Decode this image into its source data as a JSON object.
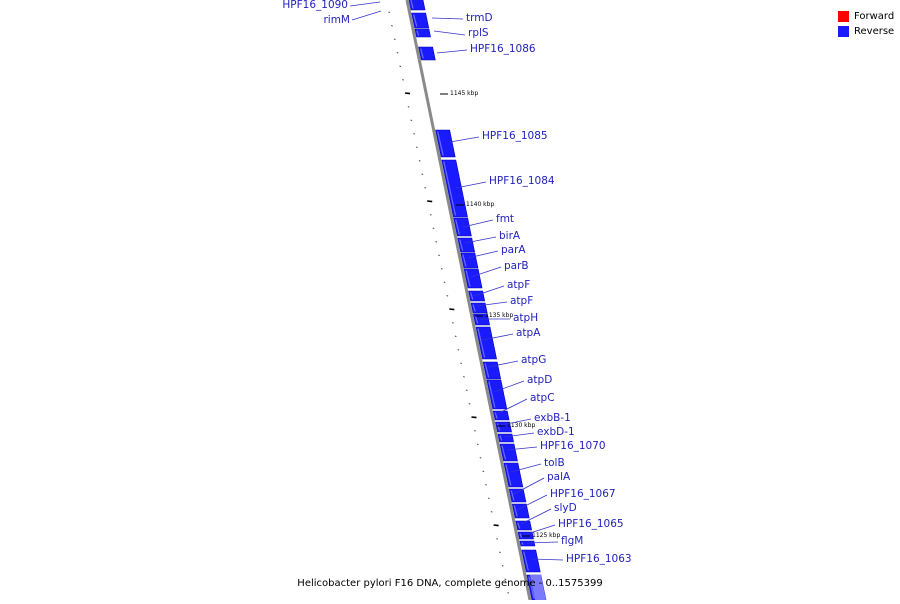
{
  "legend": [
    {
      "label": "Forward",
      "color": "#ff0000"
    },
    {
      "label": "Reverse",
      "color": "#1a1aff"
    }
  ],
  "caption": "Helicobacter pylori F16 DNA, complete genome - 0..1575399",
  "colors": {
    "gene": "#1a1aff",
    "gene_dark": "#0000b0",
    "axis": "#8a8a8a",
    "label": "#2222bb"
  },
  "scale_labels": [
    "1145 kbp",
    "1140 kbp",
    "1135 kbp",
    "1130 kbp",
    "1125 kbp"
  ],
  "genes": [
    {
      "name": "HPF16_1090"
    },
    {
      "name": "rimM"
    },
    {
      "name": "trmD"
    },
    {
      "name": "rplS"
    },
    {
      "name": "HPF16_1086"
    },
    {
      "name": "HPF16_1085"
    },
    {
      "name": "HPF16_1084"
    },
    {
      "name": "fmt"
    },
    {
      "name": "birA"
    },
    {
      "name": "parA"
    },
    {
      "name": "parB"
    },
    {
      "name": "atpF"
    },
    {
      "name": "atpF"
    },
    {
      "name": "atpH"
    },
    {
      "name": "atpA"
    },
    {
      "name": "atpG"
    },
    {
      "name": "atpD"
    },
    {
      "name": "atpC"
    },
    {
      "name": "exbB-1"
    },
    {
      "name": "exbD-1"
    },
    {
      "name": "HPF16_1070"
    },
    {
      "name": "tolB"
    },
    {
      "name": "palA"
    },
    {
      "name": "HPF16_1067"
    },
    {
      "name": "slyD"
    },
    {
      "name": "HPF16_1065"
    },
    {
      "name": "flgM"
    },
    {
      "name": "HPF16_1063"
    }
  ]
}
